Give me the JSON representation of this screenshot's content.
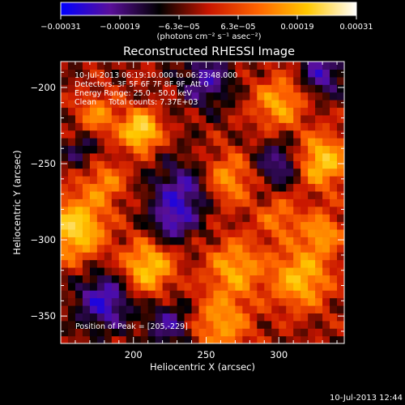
{
  "chart_data": {
    "type": "heatmap",
    "title": "Reconstructed RHESSI Image",
    "xlabel": "Heliocentric X (arcsec)",
    "ylabel": "Heliocentric Y (arcsec)",
    "xlim": [
      150,
      345
    ],
    "ylim": [
      -368,
      -183
    ],
    "x_ticks": [
      200,
      250,
      300
    ],
    "x_tick_labels": [
      "200",
      "250",
      "300"
    ],
    "y_ticks": [
      -200,
      -250,
      -300,
      -350
    ],
    "y_tick_labels": [
      "−200",
      "−250",
      "−300",
      "−350"
    ],
    "colorbar": {
      "range": [
        -0.00031,
        0.00031
      ],
      "tick_labels": [
        "−0.00031",
        "−0.00019",
        "−6.3e−05",
        "6.3e−05",
        "0.00019",
        "0.00031"
      ],
      "unit_label": "(photons cm⁻² s⁻¹ asec⁻²)",
      "colormap": [
        "#0000ff",
        "#5a0f9a",
        "#000000",
        "#c81500",
        "#ff6400",
        "#ffc800",
        "#ffffff"
      ]
    },
    "annotations": {
      "time_range": "10-Jul-2013 06:19:10.000 to 06:23:48.000",
      "detectors": "Detectors: 3F 5F 6F 7F 8F 9F, Att 0",
      "energy_range": "Energy Range: 25.0 - 50.0 keV",
      "clean_counts": "Clean     Total counts: 7.37E+03",
      "peak": "Position of Peak = [205,-229]"
    },
    "peak_position": [
      205,
      -229
    ],
    "blobs": [
      {
        "x": 205,
        "y": -228,
        "v": 1.0,
        "r": 9
      },
      {
        "x": 160,
        "y": -292,
        "v": 0.9,
        "r": 14
      },
      {
        "x": 330,
        "y": -248,
        "v": 0.82,
        "r": 12
      },
      {
        "x": 210,
        "y": -318,
        "v": 0.8,
        "r": 12
      },
      {
        "x": 315,
        "y": -325,
        "v": 0.72,
        "r": 14
      },
      {
        "x": 270,
        "y": -318,
        "v": 0.62,
        "r": 13
      },
      {
        "x": 300,
        "y": -210,
        "v": 0.62,
        "r": 12
      },
      {
        "x": 265,
        "y": -260,
        "v": 0.55,
        "r": 12
      },
      {
        "x": 260,
        "y": -355,
        "v": 0.58,
        "r": 14
      },
      {
        "x": 175,
        "y": -218,
        "v": 0.5,
        "r": 10
      },
      {
        "x": 330,
        "y": -295,
        "v": 0.55,
        "r": 10
      },
      {
        "x": 180,
        "y": -262,
        "v": 0.48,
        "r": 10
      },
      {
        "x": 300,
        "y": -285,
        "v": 0.42,
        "r": 10
      },
      {
        "x": 180,
        "y": -340,
        "v": -0.7,
        "r": 13
      },
      {
        "x": 233,
        "y": -270,
        "v": -0.62,
        "r": 14
      },
      {
        "x": 250,
        "y": -195,
        "v": -0.55,
        "r": 12
      },
      {
        "x": 330,
        "y": -190,
        "v": -0.6,
        "r": 10
      },
      {
        "x": 300,
        "y": -250,
        "v": -0.5,
        "r": 11
      },
      {
        "x": 225,
        "y": -355,
        "v": -0.5,
        "r": 11
      },
      {
        "x": 225,
        "y": -290,
        "v": -0.45,
        "r": 9
      },
      {
        "x": 165,
        "y": -240,
        "v": -0.35,
        "r": 9
      }
    ]
  },
  "footer": {
    "timestamp": "10-Jul-2013 12:44"
  }
}
